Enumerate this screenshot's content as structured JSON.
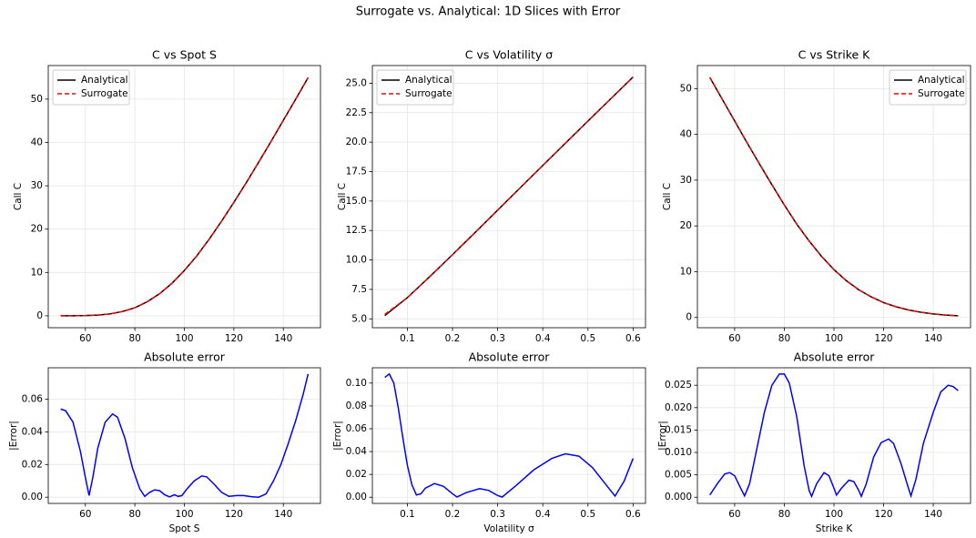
{
  "title": "Surrogate vs. Analytical: 1D Slices with Error",
  "chart_data": [
    {
      "type": "line",
      "title": "C vs Spot S",
      "ylabel": "Call C",
      "x": [
        50,
        55,
        60,
        65,
        70,
        75,
        80,
        85,
        90,
        95,
        100,
        105,
        110,
        115,
        120,
        125,
        130,
        135,
        140,
        145,
        150
      ],
      "series": [
        {
          "name": "Analytical",
          "color": "#000000",
          "linestyle": "solid",
          "values": [
            0.003,
            0.01,
            0.056,
            0.17,
            0.44,
            0.99,
            1.86,
            3.25,
            5.09,
            7.51,
            10.45,
            13.8,
            17.66,
            21.8,
            26.17,
            30.7,
            35.44,
            40.2,
            45.12,
            50.0,
            54.98
          ]
        },
        {
          "name": "Surrogate",
          "color": "#ff0000",
          "linestyle": "dashed",
          "values": [
            0.003,
            0.01,
            0.056,
            0.17,
            0.44,
            0.99,
            1.86,
            3.25,
            5.09,
            7.51,
            10.45,
            13.8,
            17.66,
            21.8,
            26.17,
            30.7,
            35.44,
            40.2,
            45.12,
            50.0,
            54.98
          ]
        }
      ],
      "xlim": [
        45,
        155
      ],
      "ylim": [
        -2.75,
        57.75
      ],
      "xticks": [
        60,
        80,
        100,
        120,
        140
      ],
      "yticks": [
        0,
        10,
        20,
        30,
        40,
        50
      ],
      "grid": true,
      "legend": "upper left"
    },
    {
      "type": "line",
      "title": "C vs Volatility σ",
      "ylabel": "Call C",
      "x": [
        0.05,
        0.1,
        0.15,
        0.2,
        0.25,
        0.3,
        0.35,
        0.4,
        0.45,
        0.5,
        0.55,
        0.6
      ],
      "series": [
        {
          "name": "Analytical",
          "color": "#000000",
          "linestyle": "solid",
          "values": [
            5.28,
            6.8,
            8.6,
            10.45,
            12.33,
            14.23,
            16.13,
            18.02,
            19.91,
            21.79,
            23.66,
            25.53
          ]
        },
        {
          "name": "Surrogate",
          "color": "#ff0000",
          "linestyle": "dashed",
          "values": [
            5.38,
            6.8,
            8.6,
            10.45,
            12.33,
            14.23,
            16.13,
            18.02,
            19.91,
            21.79,
            23.66,
            25.53
          ]
        }
      ],
      "xlim": [
        0.0225,
        0.6275
      ],
      "ylim": [
        4.25,
        26.5
      ],
      "xticks": [
        0.1,
        0.2,
        0.3,
        0.4,
        0.5,
        0.6
      ],
      "yticks": [
        {
          "value": 5,
          "label": "5.0"
        },
        7.5,
        {
          "value": 10,
          "label": "10.0"
        },
        12.5,
        {
          "value": 15,
          "label": "15.0"
        },
        17.5,
        {
          "value": 20,
          "label": "20.0"
        },
        22.5,
        {
          "value": 25,
          "label": "25.0"
        }
      ],
      "grid": true,
      "legend": "upper left"
    },
    {
      "type": "line",
      "title": "C vs Strike K",
      "ylabel": "Call C",
      "x": [
        50,
        55,
        60,
        65,
        70,
        75,
        80,
        85,
        90,
        95,
        100,
        105,
        110,
        115,
        120,
        125,
        130,
        135,
        140,
        145,
        150
      ],
      "series": [
        {
          "name": "Analytical",
          "color": "#000000",
          "linestyle": "solid",
          "values": [
            52.44,
            47.68,
            42.93,
            38.17,
            33.53,
            29.0,
            24.59,
            20.4,
            16.7,
            13.35,
            10.45,
            8.02,
            6.04,
            4.5,
            3.25,
            2.33,
            1.64,
            1.14,
            0.78,
            0.53,
            0.36
          ]
        },
        {
          "name": "Surrogate",
          "color": "#ff0000",
          "linestyle": "dashed",
          "values": [
            52.44,
            47.68,
            42.93,
            38.17,
            33.53,
            29.0,
            24.59,
            20.4,
            16.7,
            13.35,
            10.45,
            8.02,
            6.04,
            4.5,
            3.25,
            2.33,
            1.64,
            1.14,
            0.78,
            0.53,
            0.36
          ]
        }
      ],
      "xlim": [
        45,
        155
      ],
      "ylim": [
        -2.24,
        55.04
      ],
      "xticks": [
        60,
        80,
        100,
        120,
        140
      ],
      "yticks": [
        0,
        10,
        20,
        30,
        40,
        50
      ],
      "grid": true,
      "legend": "upper right"
    },
    {
      "type": "line",
      "title": "Absolute error",
      "xlabel": "Spot S",
      "ylabel": "|Error|",
      "x": [
        50,
        52,
        55,
        58,
        60,
        61.5,
        63,
        65,
        68,
        71,
        73,
        76,
        79,
        82,
        84,
        86,
        88,
        90,
        92,
        94,
        96,
        97.5,
        99,
        101,
        104,
        107,
        109,
        112,
        115,
        118,
        121,
        124,
        127,
        130,
        133,
        136,
        139,
        142,
        145,
        148,
        150
      ],
      "series": [
        {
          "color": "#0000ff",
          "linestyle": "solid",
          "values": [
            0.054,
            0.053,
            0.046,
            0.028,
            0.012,
            0.001,
            0.012,
            0.03,
            0.046,
            0.051,
            0.049,
            0.036,
            0.018,
            0.005,
            0.0005,
            0.003,
            0.0045,
            0.004,
            0.0015,
            0.0002,
            0.0015,
            0.0005,
            0.001,
            0.005,
            0.01,
            0.013,
            0.0125,
            0.008,
            0.003,
            0.0005,
            0.001,
            0.001,
            0.0003,
            0.0,
            0.002,
            0.01,
            0.02,
            0.033,
            0.047,
            0.063,
            0.0755
          ]
        }
      ],
      "xlim": [
        45,
        155
      ],
      "ylim": [
        -0.0038,
        0.0793
      ],
      "xticks": [
        60,
        80,
        100,
        120,
        140
      ],
      "yticks": [
        {
          "value": 0,
          "label": "0.00"
        },
        0.02,
        0.04,
        0.06
      ],
      "grid": true
    },
    {
      "type": "line",
      "title": "Absolute error",
      "xlabel": "Volatility σ",
      "ylabel": "|Error|",
      "x": [
        0.05,
        0.06,
        0.07,
        0.08,
        0.09,
        0.1,
        0.11,
        0.12,
        0.13,
        0.14,
        0.16,
        0.18,
        0.2,
        0.21,
        0.23,
        0.26,
        0.28,
        0.3,
        0.31,
        0.34,
        0.38,
        0.42,
        0.45,
        0.48,
        0.51,
        0.54,
        0.56,
        0.58,
        0.6
      ],
      "series": [
        {
          "color": "#0000ff",
          "linestyle": "solid",
          "values": [
            0.105,
            0.108,
            0.1,
            0.078,
            0.052,
            0.028,
            0.011,
            0.002,
            0.003,
            0.008,
            0.012,
            0.0095,
            0.003,
            0.0002,
            0.004,
            0.0075,
            0.006,
            0.0015,
            0.0002,
            0.01,
            0.024,
            0.034,
            0.038,
            0.036,
            0.026,
            0.011,
            0.001,
            0.014,
            0.034
          ]
        }
      ],
      "xlim": [
        0.0225,
        0.6275
      ],
      "ylim": [
        -0.0054,
        0.1134
      ],
      "xticks": [
        0.1,
        0.2,
        0.3,
        0.4,
        0.5,
        0.6
      ],
      "yticks": [
        {
          "value": 0,
          "label": "0.00"
        },
        0.02,
        0.04,
        0.06,
        0.08,
        {
          "value": 0.1,
          "label": "0.10"
        }
      ],
      "grid": true
    },
    {
      "type": "line",
      "title": "Absolute error",
      "xlabel": "Strike K",
      "ylabel": "|Error|",
      "x": [
        50,
        53,
        56,
        58,
        60,
        62,
        64,
        66,
        69,
        72,
        75,
        78,
        80,
        82,
        85,
        88,
        90,
        91,
        93,
        96,
        98,
        100,
        101,
        103,
        106,
        108,
        110,
        111,
        113,
        116,
        119,
        122,
        124,
        127,
        130,
        131,
        133,
        136,
        140,
        143,
        146,
        148,
        150
      ],
      "series": [
        {
          "color": "#0000ff",
          "linestyle": "solid",
          "values": [
            0.0005,
            0.003,
            0.0052,
            0.0055,
            0.0048,
            0.0025,
            0.0003,
            0.003,
            0.011,
            0.019,
            0.025,
            0.0275,
            0.0275,
            0.0255,
            0.018,
            0.007,
            0.0015,
            0.0002,
            0.003,
            0.0055,
            0.0048,
            0.002,
            0.0005,
            0.002,
            0.0038,
            0.0035,
            0.0015,
            0.0002,
            0.003,
            0.009,
            0.0122,
            0.013,
            0.012,
            0.0075,
            0.002,
            0.0003,
            0.004,
            0.012,
            0.019,
            0.0235,
            0.025,
            0.0247,
            0.0238
          ]
        }
      ],
      "xlim": [
        45,
        155
      ],
      "ylim": [
        -0.001375,
        0.0289
      ],
      "xticks": [
        60,
        80,
        100,
        120,
        140
      ],
      "yticks": [
        {
          "value": 0,
          "label": "0.000"
        },
        {
          "value": 0.005,
          "label": "0.005"
        },
        {
          "value": 0.01,
          "label": "0.010"
        },
        {
          "value": 0.015,
          "label": "0.015"
        },
        {
          "value": 0.02,
          "label": "0.020"
        },
        {
          "value": 0.025,
          "label": "0.025"
        }
      ],
      "grid": true
    }
  ]
}
